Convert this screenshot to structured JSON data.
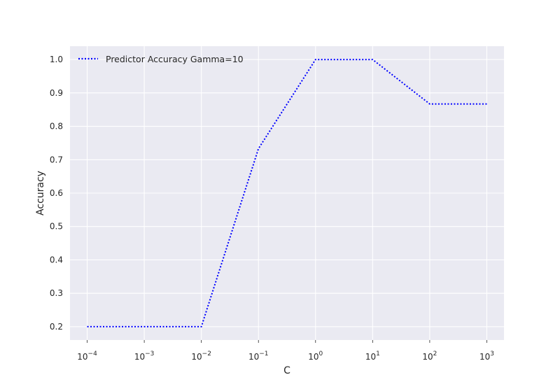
{
  "chart_data": {
    "type": "line",
    "title": "",
    "xlabel": "C",
    "ylabel": "Accuracy",
    "x_scale": "log",
    "xlim": [
      5e-05,
      2000
    ],
    "ylim": [
      0.16,
      1.04
    ],
    "x_ticks": [
      0.0001,
      0.001,
      0.01,
      0.1,
      1,
      10,
      100,
      1000
    ],
    "x_tick_labels": [
      {
        "base": "10",
        "exp": "−4"
      },
      {
        "base": "10",
        "exp": "−3"
      },
      {
        "base": "10",
        "exp": "−2"
      },
      {
        "base": "10",
        "exp": "−1"
      },
      {
        "base": "10",
        "exp": "0"
      },
      {
        "base": "10",
        "exp": "1"
      },
      {
        "base": "10",
        "exp": "2"
      },
      {
        "base": "10",
        "exp": "3"
      }
    ],
    "y_ticks": [
      0.2,
      0.3,
      0.4,
      0.5,
      0.6,
      0.7,
      0.8,
      0.9,
      1.0
    ],
    "y_tick_labels": [
      "0.2",
      "0.3",
      "0.4",
      "0.5",
      "0.6",
      "0.7",
      "0.8",
      "0.9",
      "1.0"
    ],
    "grid": true,
    "legend_position": "top-left",
    "series": [
      {
        "name": "Predictor Accuracy Gamma=10",
        "color": "#0000ff",
        "style": "dotted",
        "x": [
          0.0001,
          0.001,
          0.01,
          0.1,
          1,
          10,
          100,
          1000
        ],
        "y": [
          0.2,
          0.2,
          0.2,
          0.733,
          1.0,
          1.0,
          0.867,
          0.867
        ]
      }
    ],
    "colors": {
      "plot_background": "#eaeaf2",
      "grid": "#ffffff",
      "text": "#262626"
    }
  }
}
